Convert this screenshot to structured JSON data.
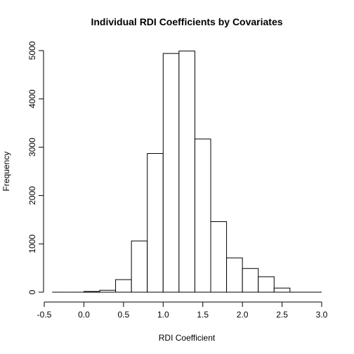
{
  "chart_data": {
    "type": "bar",
    "title": "Individual RDI Coefficients by Covariates",
    "xlabel": "RDI Coefficient",
    "ylabel": "Frequency",
    "bin_width": 0.2,
    "bins": [
      {
        "x0": -0.4,
        "x1": -0.2,
        "count": 0
      },
      {
        "x0": -0.2,
        "x1": 0.0,
        "count": 0
      },
      {
        "x0": 0.0,
        "x1": 0.2,
        "count": 15
      },
      {
        "x0": 0.2,
        "x1": 0.4,
        "count": 40
      },
      {
        "x0": 0.4,
        "x1": 0.6,
        "count": 260
      },
      {
        "x0": 0.6,
        "x1": 0.8,
        "count": 1060
      },
      {
        "x0": 0.8,
        "x1": 1.0,
        "count": 2870
      },
      {
        "x0": 1.0,
        "x1": 1.2,
        "count": 4940
      },
      {
        "x0": 1.2,
        "x1": 1.4,
        "count": 4990
      },
      {
        "x0": 1.4,
        "x1": 1.6,
        "count": 3170
      },
      {
        "x0": 1.6,
        "x1": 1.8,
        "count": 1460
      },
      {
        "x0": 1.8,
        "x1": 2.0,
        "count": 710
      },
      {
        "x0": 2.0,
        "x1": 2.2,
        "count": 490
      },
      {
        "x0": 2.2,
        "x1": 2.4,
        "count": 320
      },
      {
        "x0": 2.4,
        "x1": 2.6,
        "count": 85
      },
      {
        "x0": 2.6,
        "x1": 2.8,
        "count": 0
      },
      {
        "x0": 2.8,
        "x1": 3.0,
        "count": 0
      }
    ],
    "xlim": [
      -0.5,
      3.0
    ],
    "ylim": [
      0,
      5000
    ],
    "xticks": [
      -0.5,
      0.0,
      0.5,
      1.0,
      1.5,
      2.0,
      2.5,
      3.0
    ],
    "xtick_labels": [
      "-0.5",
      "0.0",
      "0.5",
      "1.0",
      "1.5",
      "2.0",
      "2.5",
      "3.0"
    ],
    "yticks": [
      0,
      1000,
      2000,
      3000,
      4000,
      5000
    ],
    "ytick_labels": [
      "0",
      "1000",
      "2000",
      "3000",
      "4000",
      "5000"
    ],
    "grid": false,
    "legend": "none"
  }
}
